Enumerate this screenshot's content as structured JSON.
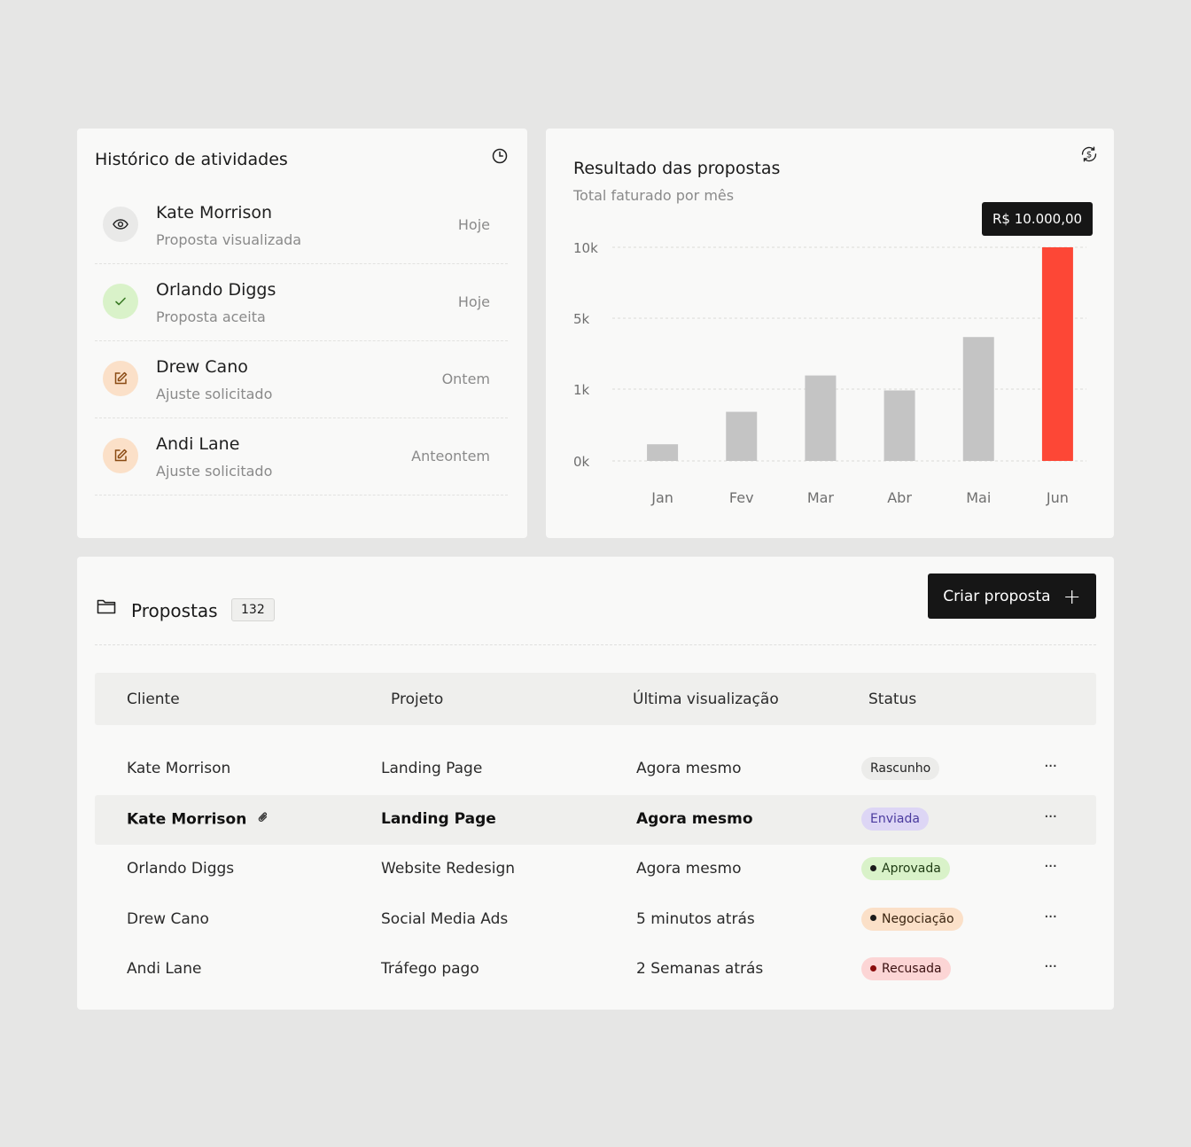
{
  "activity": {
    "title": "Histórico de atividades",
    "items": [
      {
        "name": "Kate Morrison",
        "desc": "Proposta visualizada",
        "when": "Hoje",
        "icon": "eye-icon",
        "bg": "#e9e9e8"
      },
      {
        "name": "Orlando Diggs",
        "desc": "Proposta aceita",
        "when": "Hoje",
        "icon": "check-icon",
        "bg": "#d9f2c9"
      },
      {
        "name": "Drew Cano",
        "desc": "Ajuste solicitado",
        "when": "Ontem",
        "icon": "edit-icon",
        "bg": "#fbe0c8"
      },
      {
        "name": "Andi Lane",
        "desc": "Ajuste solicitado",
        "when": "Anteontem",
        "icon": "edit-icon",
        "bg": "#fbe0c8"
      }
    ]
  },
  "chart": {
    "title": "Resultado das propostas",
    "subtitle": "Total faturado por mês",
    "tooltip": "R$ 10.000,00"
  },
  "chart_data": {
    "type": "bar",
    "categories": [
      "Jan",
      "Fev",
      "Mar",
      "Abr",
      "Mai",
      "Jun"
    ],
    "values": [
      0.78,
      2.3,
      4.0,
      3.3,
      5.8,
      10
    ],
    "y_ticks": [
      "10k",
      "5k",
      "1k",
      "0k"
    ],
    "highlight_index": 5,
    "colors": {
      "bar": "#c4c4c4",
      "highlight": "#fd4736"
    },
    "grid": true
  },
  "proposals": {
    "title": "Propostas",
    "count": "132",
    "create_label": "Criar proposta",
    "columns": [
      "Cliente",
      "Projeto",
      "Última visualização",
      "Status"
    ],
    "rows": [
      {
        "client": "Kate Morrison",
        "project": "Landing Page",
        "viewed": "Agora mesmo",
        "status": "Rascunho",
        "status_bg": "#ececea",
        "status_fg": "#222",
        "dot": "",
        "highlight": false,
        "attachment": false
      },
      {
        "client": "Kate Morrison",
        "project": "Landing Page",
        "viewed": "Agora mesmo",
        "status": "Enviada",
        "status_bg": "#ddd6f5",
        "status_fg": "#4a3a9e",
        "dot": "",
        "highlight": true,
        "attachment": true
      },
      {
        "client": "Orlando Diggs",
        "project": "Website Redesign",
        "viewed": "Agora mesmo",
        "status": "Aprovada",
        "status_bg": "#d9f2c9",
        "status_fg": "#1d3a12",
        "dot": "#1a1a1a",
        "highlight": false,
        "attachment": false
      },
      {
        "client": "Drew Cano",
        "project": "Social Media Ads",
        "viewed": "5 minutos atrás",
        "status": "Negociação",
        "status_bg": "#fbe0c8",
        "status_fg": "#3a2410",
        "dot": "#1a1a1a",
        "highlight": false,
        "attachment": false
      },
      {
        "client": "Andi Lane",
        "project": "Tráfego pago",
        "viewed": "2 Semanas atrás",
        "status": "Recusada",
        "status_bg": "#fcd5d5",
        "status_fg": "#3a1010",
        "dot": "#8a0c0c",
        "highlight": false,
        "attachment": false
      }
    ],
    "more_label": "···"
  }
}
